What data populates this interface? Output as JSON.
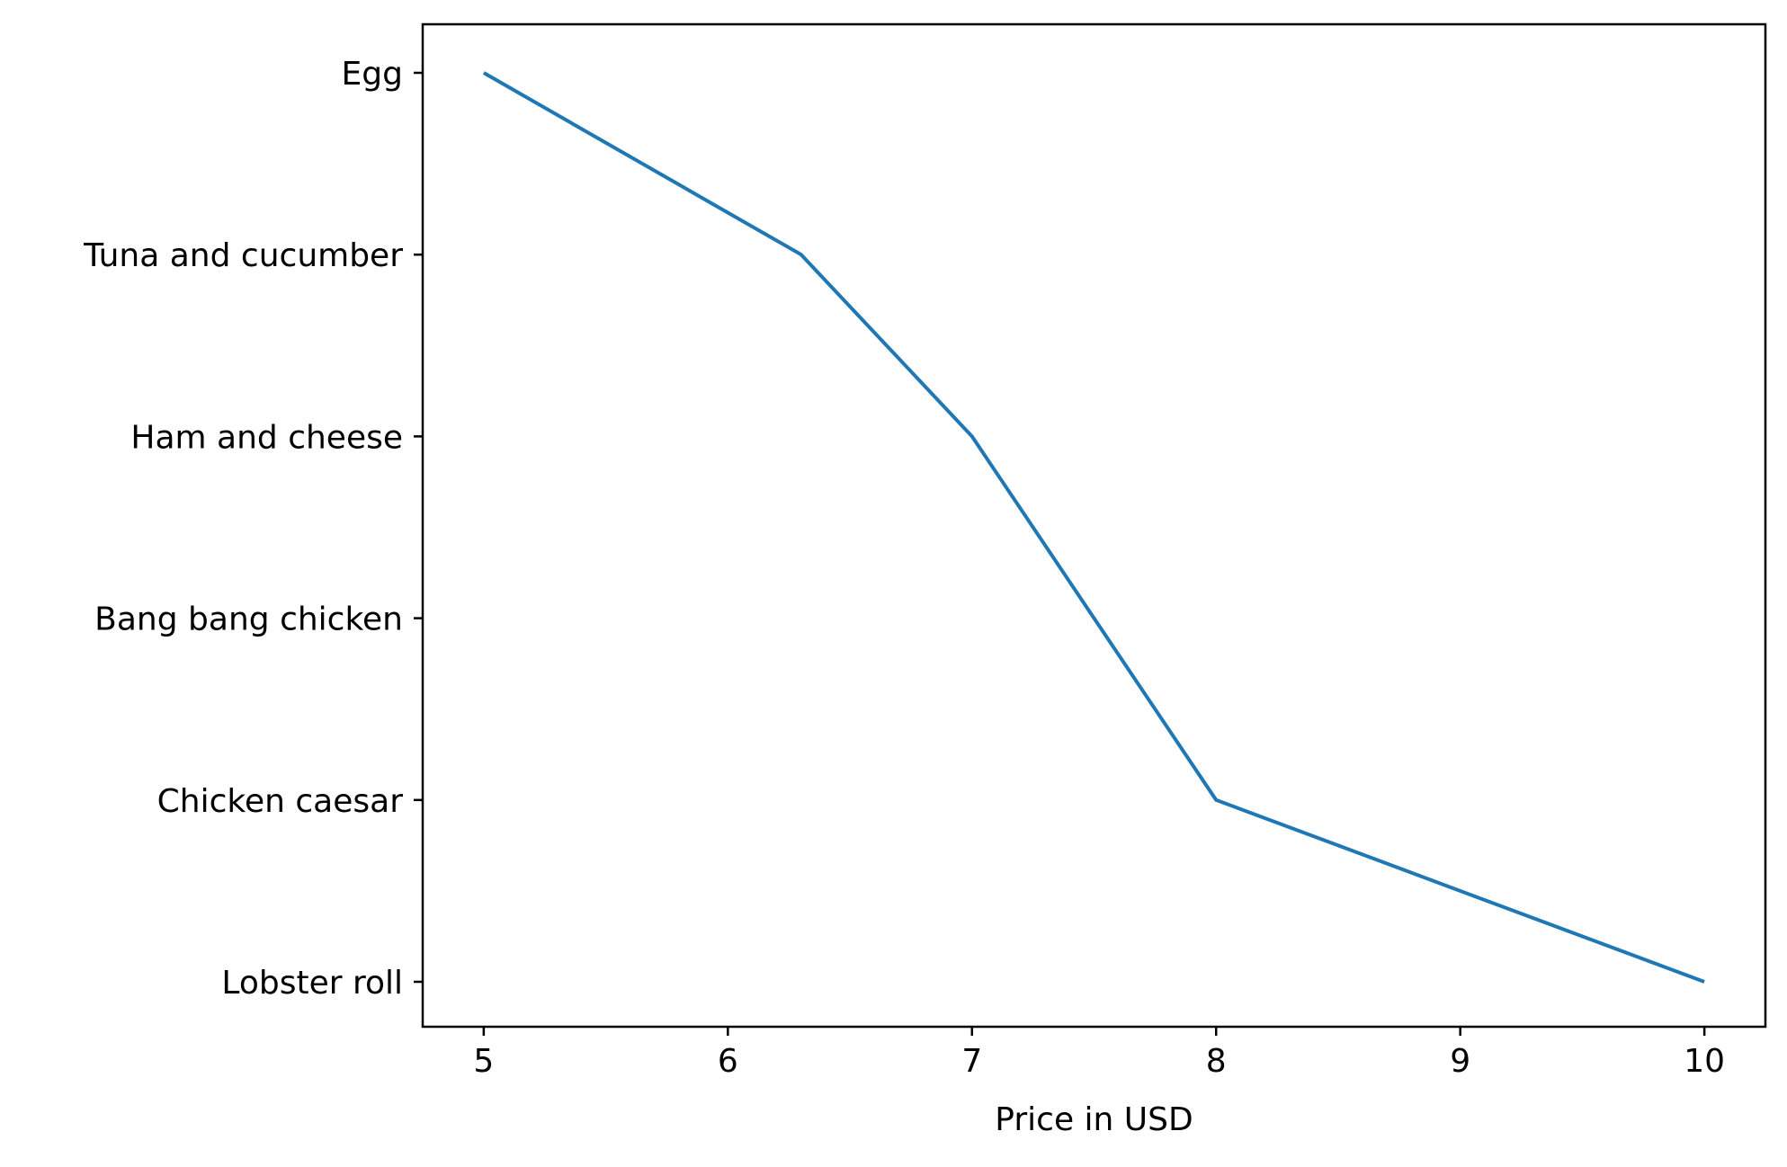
{
  "chart_data": {
    "type": "line",
    "title": "",
    "xlabel": "Price in USD",
    "ylabel": "",
    "categories": [
      "Egg",
      "Tuna and cucumber",
      "Ham and cheese",
      "Bang bang chicken",
      "Chicken caesar",
      "Lobster roll"
    ],
    "series": [
      {
        "x": [
          5.0,
          6.3,
          7.0,
          7.5,
          8.0,
          10.0
        ],
        "y": [
          "Egg",
          "Tuna and cucumber",
          "Ham and cheese",
          "Bang bang chicken",
          "Chicken caesar",
          "Lobster roll"
        ]
      }
    ],
    "x_ticks": [
      5,
      6,
      7,
      8,
      9,
      10
    ],
    "xlim": [
      4.75,
      10.25
    ],
    "grid": false,
    "legend": "none",
    "colors": {
      "line": "#1f77b4",
      "axes": "#000000",
      "background": "#ffffff"
    }
  }
}
